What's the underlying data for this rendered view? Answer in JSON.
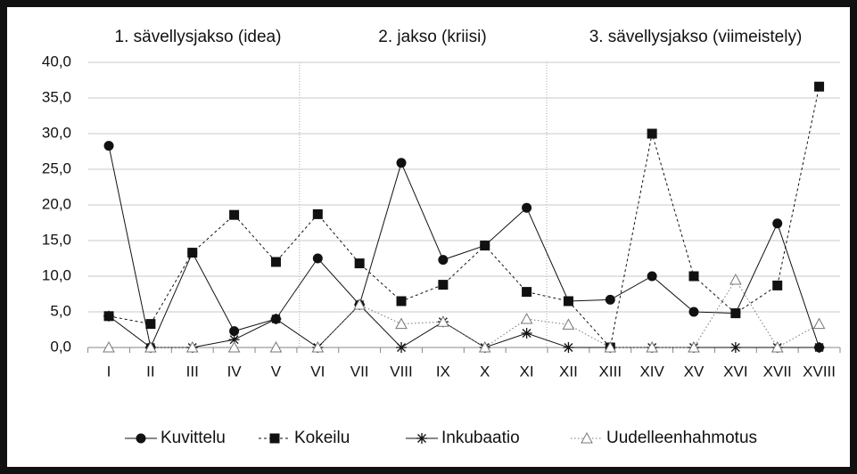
{
  "chart_data": {
    "type": "line",
    "section_labels": [
      "1. sävellysjakso (idea)",
      "2. jakso (kriisi)",
      "3. sävellysjakso (viimeistely)"
    ],
    "categories": [
      "I",
      "II",
      "III",
      "IV",
      "V",
      "VI",
      "VII",
      "VIII",
      "IX",
      "X",
      "XI",
      "XII",
      "XIII",
      "XIV",
      "XV",
      "XVI",
      "XVII",
      "XVIII"
    ],
    "series": [
      {
        "name": "Kuvittelu",
        "color": "#111111",
        "marker": "circle",
        "line_style": "solid",
        "values": [
          28.3,
          0,
          13.3,
          2.3,
          4.0,
          12.5,
          6.0,
          25.9,
          12.3,
          14.3,
          19.6,
          6.5,
          6.7,
          10.0,
          5.0,
          4.8,
          17.4,
          0
        ]
      },
      {
        "name": "Kokeilu",
        "color": "#111111",
        "marker": "square",
        "line_style": "dashed",
        "values": [
          4.4,
          3.3,
          13.3,
          18.6,
          12.0,
          18.7,
          11.8,
          6.5,
          8.8,
          14.3,
          7.8,
          6.5,
          0,
          30.0,
          10.0,
          4.8,
          8.7,
          36.6
        ]
      },
      {
        "name": "Inkubaatio",
        "color": "#111111",
        "marker": "asterisk",
        "line_style": "solid",
        "values": [
          4.4,
          0,
          0,
          1.1,
          4.0,
          0,
          6.0,
          0,
          3.6,
          0,
          2.0,
          0,
          0,
          0,
          0,
          0,
          0,
          0
        ]
      },
      {
        "name": "Uudelleenhahmotus",
        "color": "#777777",
        "marker": "triangle",
        "line_style": "dotted",
        "values": [
          0,
          0,
          0,
          0,
          0,
          0,
          6.0,
          3.3,
          3.6,
          0,
          4.0,
          3.2,
          0,
          0,
          0,
          9.5,
          0,
          3.3
        ]
      }
    ],
    "ylim": [
      0,
      40
    ],
    "yticks": [
      {
        "value": 0,
        "label": "0,0"
      },
      {
        "value": 5,
        "label": "5,0"
      },
      {
        "value": 10,
        "label": "10,0"
      },
      {
        "value": 15,
        "label": "15,0"
      },
      {
        "value": 20,
        "label": "20,0"
      },
      {
        "value": 25,
        "label": "25,0"
      },
      {
        "value": 30,
        "label": "30,0"
      },
      {
        "value": 35,
        "label": "35,0"
      },
      {
        "value": 40,
        "label": "40,0"
      }
    ],
    "grid": true,
    "legend": "bottom"
  }
}
